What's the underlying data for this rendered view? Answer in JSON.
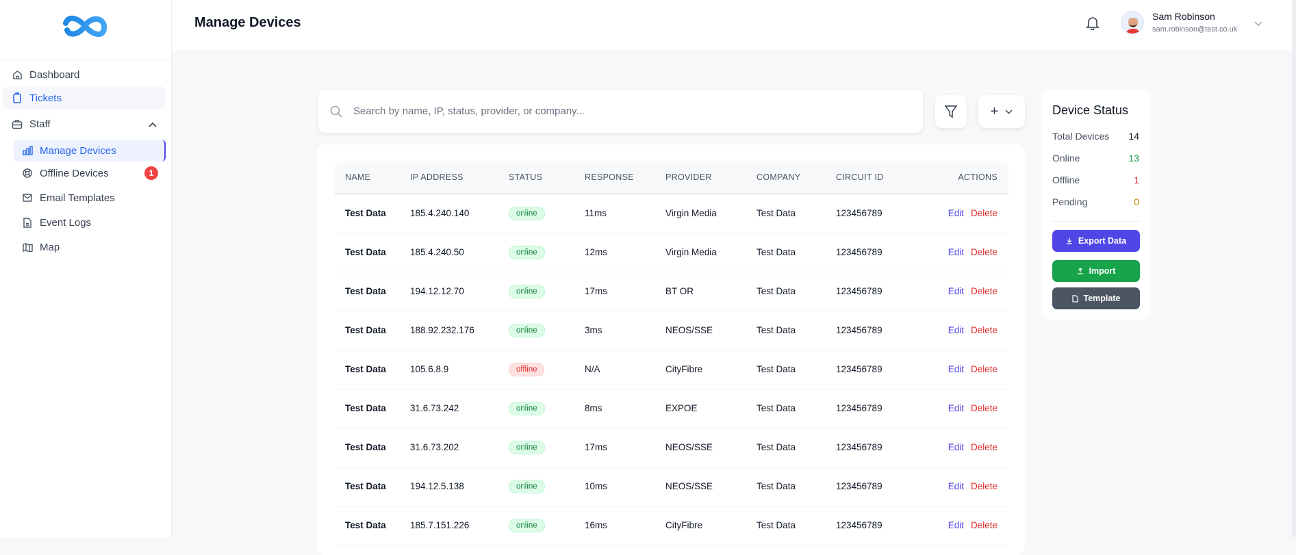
{
  "sidebar": {
    "items": [
      {
        "label": "Dashboard",
        "icon": "home-icon"
      },
      {
        "label": "Tickets",
        "icon": "clipboard-icon"
      },
      {
        "label": "Staff",
        "icon": "briefcase-icon"
      },
      {
        "label": "Manage Devices",
        "icon": "bar-chart-icon"
      },
      {
        "label": "Offline Devices",
        "icon": "lifebuoy-icon",
        "badge": "1"
      },
      {
        "label": "Email Templates",
        "icon": "mail-icon"
      },
      {
        "label": "Event Logs",
        "icon": "file-icon"
      },
      {
        "label": "Map",
        "icon": "map-icon"
      }
    ]
  },
  "header": {
    "title": "Manage Devices",
    "user": {
      "name": "Sam Robinson",
      "email": "sam.robinson@test.co.uk"
    }
  },
  "search": {
    "placeholder": "Search by name, IP, status, provider, or company...",
    "value": ""
  },
  "toolbar": {
    "add_label": "+"
  },
  "table": {
    "columns": [
      "NAME",
      "IP ADDRESS",
      "STATUS",
      "RESPONSE",
      "PROVIDER",
      "COMPANY",
      "CIRCUIT ID",
      "ACTIONS"
    ],
    "edit_label": "Edit",
    "delete_label": "Delete",
    "rows": [
      {
        "name": "Test Data",
        "ip": "185.4.240.140",
        "status": "online",
        "response": "11ms",
        "provider": "Virgin Media",
        "company": "Test Data",
        "circuit": "123456789"
      },
      {
        "name": "Test Data",
        "ip": "185.4.240.50",
        "status": "online",
        "response": "12ms",
        "provider": "Virgin Media",
        "company": "Test Data",
        "circuit": "123456789"
      },
      {
        "name": "Test Data",
        "ip": "194.12.12.70",
        "status": "online",
        "response": "17ms",
        "provider": "BT OR",
        "company": "Test Data",
        "circuit": "123456789"
      },
      {
        "name": "Test Data",
        "ip": "188.92.232.176",
        "status": "online",
        "response": "3ms",
        "provider": "NEOS/SSE",
        "company": "Test Data",
        "circuit": "123456789"
      },
      {
        "name": "Test Data",
        "ip": "105.6.8.9",
        "status": "offline",
        "response": "N/A",
        "provider": "CityFibre",
        "company": "Test Data",
        "circuit": "123456789"
      },
      {
        "name": "Test Data",
        "ip": "31.6.73.242",
        "status": "online",
        "response": "8ms",
        "provider": "EXPOE",
        "company": "Test Data",
        "circuit": "123456789"
      },
      {
        "name": "Test Data",
        "ip": "31.6.73.202",
        "status": "online",
        "response": "17ms",
        "provider": "NEOS/SSE",
        "company": "Test Data",
        "circuit": "123456789"
      },
      {
        "name": "Test Data",
        "ip": "194.12.5.138",
        "status": "online",
        "response": "10ms",
        "provider": "NEOS/SSE",
        "company": "Test Data",
        "circuit": "123456789"
      },
      {
        "name": "Test Data",
        "ip": "185.7.151.226",
        "status": "online",
        "response": "16ms",
        "provider": "CityFibre",
        "company": "Test Data",
        "circuit": "123456789"
      }
    ]
  },
  "device_status": {
    "title": "Device Status",
    "stats": [
      {
        "label": "Total Devices",
        "value": "14",
        "color": "#111827"
      },
      {
        "label": "Online",
        "value": "13",
        "color": "#16a34a"
      },
      {
        "label": "Offline",
        "value": "1",
        "color": "#dc2626"
      },
      {
        "label": "Pending",
        "value": "0",
        "color": "#ca8a04"
      }
    ],
    "buttons": [
      {
        "label": "Export Data",
        "color": "#4f46e5",
        "icon": "download-icon"
      },
      {
        "label": "Import",
        "color": "#16a34a",
        "icon": "upload-icon"
      },
      {
        "label": "Template",
        "color": "#4b5563",
        "icon": "document-icon"
      }
    ]
  }
}
